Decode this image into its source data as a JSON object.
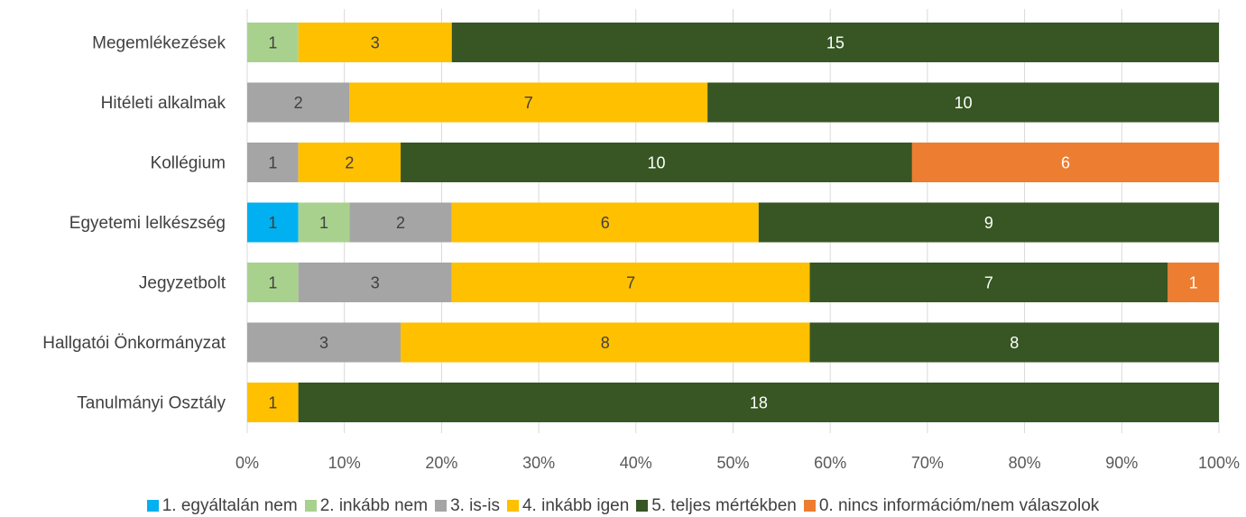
{
  "chart_data": {
    "type": "bar",
    "orientation": "horizontal",
    "stacked": "percent",
    "categories": [
      "Megemlékezések",
      "Hitéleti alkalmak",
      "Kollégium",
      "Egyetemi lelkészség",
      "Jegyzetbolt",
      "Hallgatói Önkormányzat",
      "Tanulmányi Osztály"
    ],
    "series": [
      {
        "name": "1. egyáltalán nem",
        "color": "#00B0F0",
        "values": [
          0,
          0,
          0,
          1,
          0,
          0,
          0
        ]
      },
      {
        "name": "2. inkább nem",
        "color": "#A9D18E",
        "values": [
          1,
          0,
          0,
          1,
          1,
          0,
          0
        ]
      },
      {
        "name": "3. is-is",
        "color": "#A5A5A5",
        "values": [
          0,
          2,
          1,
          2,
          3,
          3,
          0
        ]
      },
      {
        "name": "4. inkább igen",
        "color": "#FFC000",
        "values": [
          3,
          7,
          2,
          6,
          7,
          8,
          1
        ]
      },
      {
        "name": "5. teljes mértékben",
        "color": "#375623",
        "values": [
          15,
          10,
          10,
          9,
          7,
          8,
          18
        ]
      },
      {
        "name": "0. nincs információm/nem válaszolok",
        "color": "#ED7D31",
        "values": [
          0,
          0,
          6,
          0,
          1,
          0,
          0
        ]
      }
    ],
    "x_ticks": [
      "0%",
      "10%",
      "20%",
      "30%",
      "40%",
      "50%",
      "60%",
      "70%",
      "80%",
      "90%",
      "100%"
    ],
    "xlim": [
      0,
      100
    ],
    "grid": true,
    "legend_position": "bottom",
    "title": "",
    "xlabel": "",
    "ylabel": ""
  }
}
